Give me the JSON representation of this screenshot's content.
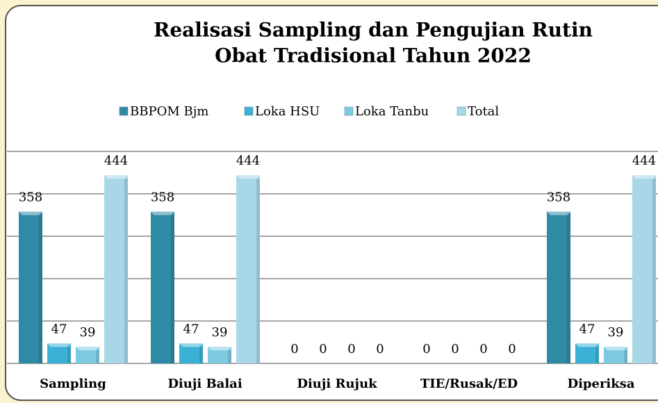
{
  "chart_data": {
    "type": "bar",
    "title": "Realisasi Sampling dan Pengujian Rutin",
    "subtitle": "Obat Tradisional Tahun 2022",
    "categories": [
      "Sampling",
      "Diuji Balai",
      "Diuji Rujuk",
      "TIE/Rusak/ED",
      "Diperiksa"
    ],
    "series": [
      {
        "name": "BBPOM Bjm",
        "color": "#2f8aa6",
        "values": [
          358,
          358,
          0,
          0,
          358
        ]
      },
      {
        "name": "Loka HSU",
        "color": "#3bb2d5",
        "values": [
          47,
          47,
          0,
          0,
          47
        ]
      },
      {
        "name": "Loka Tanbu",
        "color": "#7ccbe1",
        "values": [
          39,
          39,
          0,
          0,
          39
        ]
      },
      {
        "name": "Total",
        "color": "#a8d7e7",
        "values": [
          444,
          444,
          0,
          0,
          444
        ]
      }
    ],
    "ylim": [
      0,
      500
    ],
    "yticks": [
      0,
      100,
      200,
      300,
      400,
      500
    ],
    "grid": true,
    "legend": "top"
  }
}
